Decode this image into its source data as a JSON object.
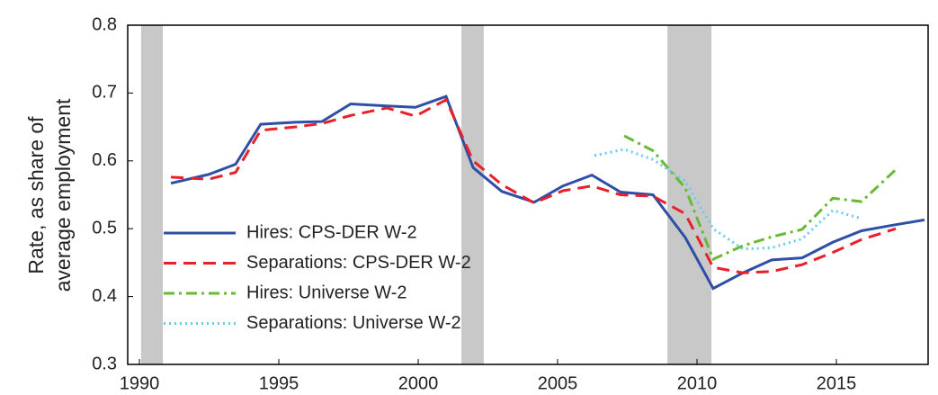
{
  "chart_data": {
    "type": "line",
    "y_label": [
      "Rate, as share of",
      "average employment"
    ],
    "xlim": [
      1989.58,
      2018.29
    ],
    "xticks": [
      1990,
      1995,
      2000,
      2005,
      2010,
      2015
    ],
    "ylim": [
      0.3,
      0.8
    ],
    "yticks": [
      0.3,
      0.4,
      0.5,
      0.6,
      0.7,
      0.8
    ],
    "shaded_periods": [
      [
        1990.06,
        1990.84
      ],
      [
        2001.55,
        2002.35
      ],
      [
        2008.94,
        2010.52
      ]
    ],
    "shade_color": "#c8c8c8",
    "legend": "left",
    "series": [
      {
        "name": "Hires: CPS-DER W-2",
        "color": "#2e4fa6",
        "dash": "",
        "x": [
          1991.13,
          1992.48,
          1993.45,
          1994.35,
          1995.58,
          1996.55,
          1997.58,
          1998.87,
          1999.9,
          2001.0,
          2001.97,
          2003.0,
          2004.16,
          2005.19,
          2006.23,
          2007.26,
          2008.42,
          2009.58,
          2010.58,
          2011.65,
          2012.68,
          2013.77,
          2014.87,
          2015.9,
          2017.13,
          2018.16
        ],
        "values": [
          0.567,
          0.58,
          0.595,
          0.654,
          0.657,
          0.658,
          0.684,
          0.681,
          0.679,
          0.695,
          0.59,
          0.555,
          0.539,
          0.563,
          0.579,
          0.554,
          0.55,
          0.487,
          0.412,
          0.435,
          0.454,
          0.457,
          0.48,
          0.497,
          0.506,
          0.513
        ]
      },
      {
        "name": "Separations: CPS-DER W-2",
        "color": "#e8202a",
        "dash": "14 8",
        "x": [
          1991.13,
          1992.48,
          1993.45,
          1994.35,
          1995.58,
          1996.55,
          1997.58,
          1998.87,
          1999.9,
          2001.0,
          2001.97,
          2003.0,
          2004.16,
          2005.19,
          2006.23,
          2007.26,
          2008.42,
          2009.58,
          2010.58,
          2011.65,
          2012.68,
          2013.77,
          2014.87,
          2015.9,
          2017.13
        ],
        "values": [
          0.576,
          0.573,
          0.583,
          0.645,
          0.65,
          0.655,
          0.667,
          0.678,
          0.666,
          0.69,
          0.6,
          0.565,
          0.538,
          0.556,
          0.563,
          0.55,
          0.548,
          0.522,
          0.443,
          0.435,
          0.437,
          0.447,
          0.465,
          0.484,
          0.5
        ]
      },
      {
        "name": "Hires: Universe W-2",
        "color": "#66bb33",
        "dash": "12 5 3 5",
        "x": [
          2007.39,
          2008.42,
          2009.58,
          2010.58,
          2011.65,
          2012.68,
          2013.77,
          2014.87,
          2015.9,
          2017.13
        ],
        "values": [
          0.637,
          0.615,
          0.56,
          0.455,
          0.475,
          0.488,
          0.499,
          0.545,
          0.54,
          0.587
        ]
      },
      {
        "name": "Separations: Universe W-2",
        "color": "#66ccee",
        "dash": "2 4",
        "x": [
          2006.32,
          2007.39,
          2008.42,
          2009.58,
          2010.58,
          2011.65,
          2012.68,
          2013.77,
          2014.87,
          2015.9
        ],
        "values": [
          0.608,
          0.617,
          0.602,
          0.57,
          0.5,
          0.47,
          0.472,
          0.485,
          0.527,
          0.515
        ]
      }
    ]
  }
}
